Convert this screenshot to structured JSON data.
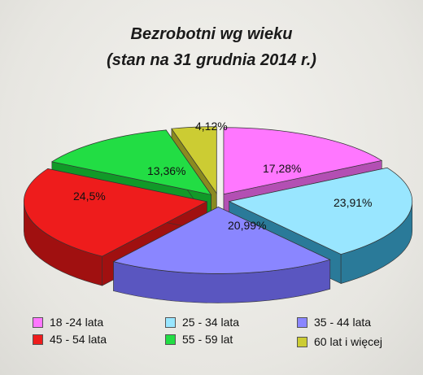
{
  "chart_data": {
    "type": "pie",
    "title": "Bezrobotni wg wieku",
    "subtitle": "(stan na 31 grudnia 2014 r.)",
    "labels": [
      "18 -24 lata",
      "25 - 34 lata",
      "35 - 44 lata",
      "45 - 54 lata",
      "55 - 59 lat",
      "60 lat i więcej"
    ],
    "values": [
      17.28,
      23.91,
      20.99,
      24.5,
      13.36,
      4.12
    ],
    "value_labels": [
      "17,28%",
      "23,91%",
      "20,99%",
      "24,5%",
      "13,36%",
      "4,12%"
    ],
    "colors": [
      "#ff77ff",
      "#99e6ff",
      "#8a86ff",
      "#ee1c1c",
      "#22dd44",
      "#cccc33"
    ],
    "side_colors": [
      "#b34fb3",
      "#2a7a99",
      "#5a56c0",
      "#a01010",
      "#119928",
      "#8a8a1f"
    ],
    "style": "3d-exploded",
    "legend_position": "bottom"
  }
}
